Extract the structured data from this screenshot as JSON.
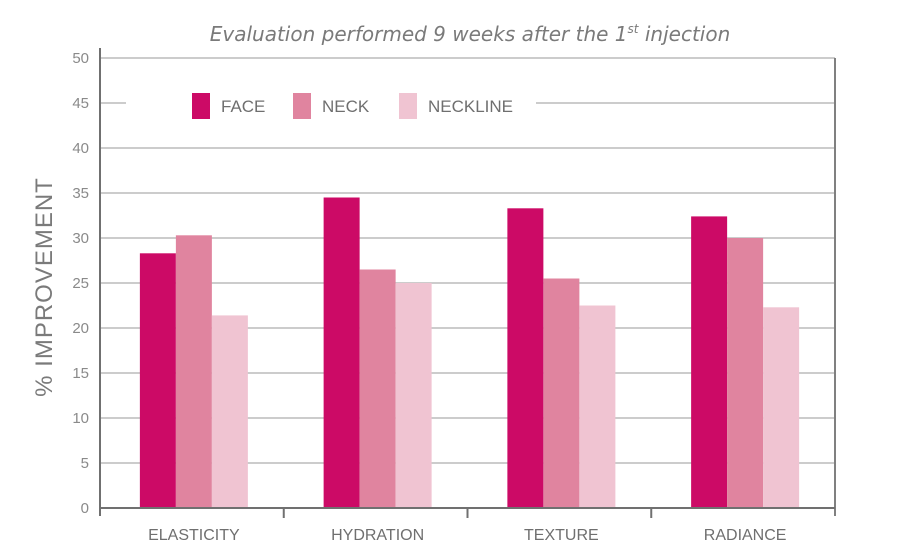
{
  "chart_data": {
    "type": "bar",
    "title": {
      "prefix": "Evaluation performed 9 weeks after the 1",
      "superscript": "st",
      "suffix": " injection"
    },
    "ylabel": "% IMPROVEMENT",
    "xlabel": "",
    "ylim": [
      0,
      50
    ],
    "yticks": [
      "0",
      "5",
      "10",
      "15",
      "20",
      "25",
      "30",
      "35",
      "40",
      "45",
      "50"
    ],
    "grid": true,
    "legend_position": "top-left",
    "categories": [
      "ELASTICITY",
      "HYDRATION",
      "TEXTURE",
      "RADIANCE"
    ],
    "series": [
      {
        "name": "FACE",
        "color": "#cc0a66",
        "values": [
          28.3,
          34.5,
          33.3,
          32.4
        ]
      },
      {
        "name": "NECK",
        "color": "#e0849f",
        "values": [
          30.3,
          26.5,
          25.5,
          30.0
        ]
      },
      {
        "name": "NECKLINE",
        "color": "#f0c4d2",
        "values": [
          21.4,
          25.0,
          22.5,
          22.3
        ]
      }
    ]
  }
}
